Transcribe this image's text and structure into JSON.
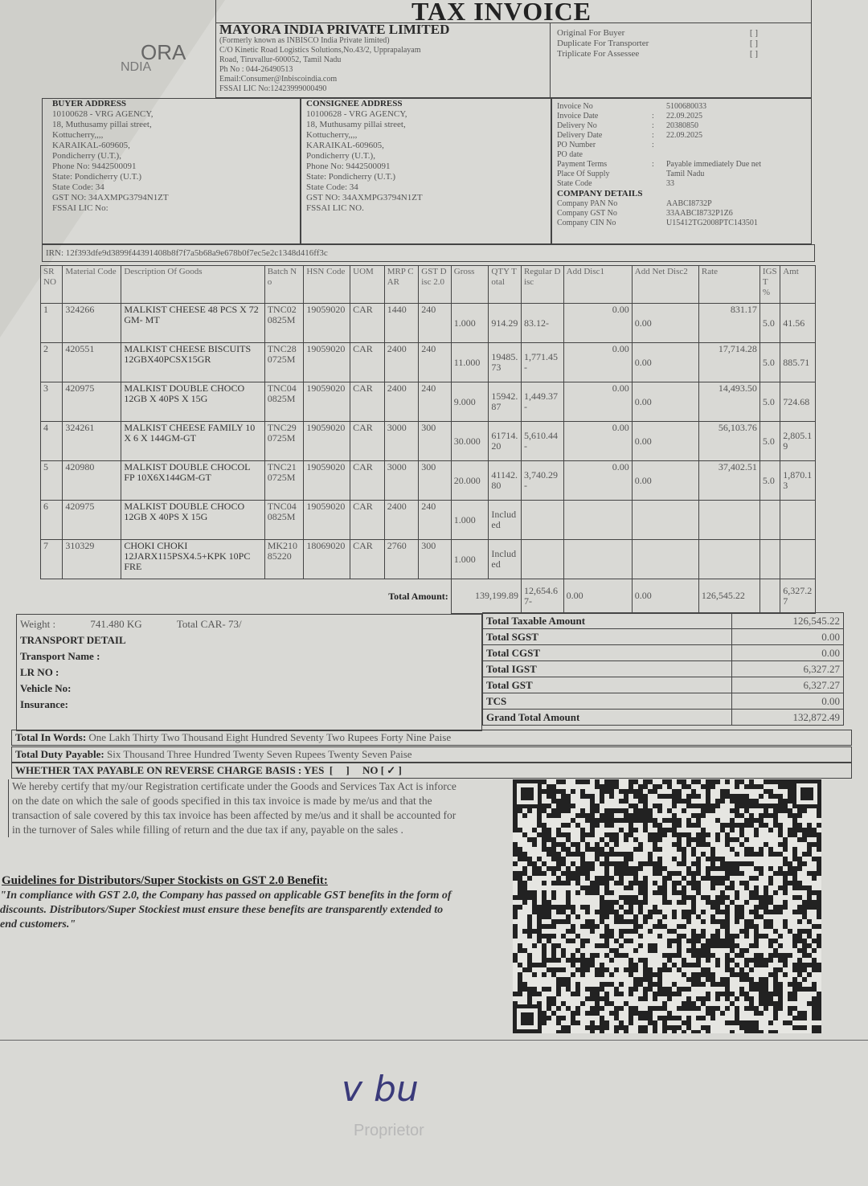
{
  "logo": {
    "text_top": "ORA",
    "text_bottom": "NDIA"
  },
  "title": "TAX INVOICE",
  "seller": {
    "name": "MAYORA INDIA PRIVATE LIMITED",
    "lines": [
      "(Formerly known as INBISCO India Private limited)",
      "C/O Kinetic Road Logistics Solutions,No.43/2, Upprapalayam",
      "Road, Tiruvallur-600052, Tamil Nadu",
      "Ph No : 044-26490513",
      "Email:Consumer@Inbiscoindia.com",
      "FSSAI LIC No:12423999000490"
    ]
  },
  "copies": [
    {
      "label": "Original For Buyer",
      "mark": "[  ]"
    },
    {
      "label": "Duplicate For Transporter",
      "mark": "[  ]"
    },
    {
      "label": "Triplicate For Assessee",
      "mark": "[  ]"
    }
  ],
  "buyer": {
    "heading": "BUYER ADDRESS",
    "lines": [
      "10100628 - VRG AGENCY,",
      "18, Muthusamy pillai street,",
      "Kottucherry,,,,",
      "KARAIKAL-609605,",
      "Pondicherry (U.T.),",
      "Phone No: 9442500091",
      "State: Pondicherry (U.T.)",
      "State Code: 34",
      "GST NO: 34AXMPG3794N1ZT",
      "FSSAI LIC No:"
    ]
  },
  "consignee": {
    "heading": "CONSIGNEE ADDRESS",
    "lines": [
      "10100628 - VRG AGENCY,",
      "18, Muthusamy pillai street,",
      "Kottucherry,,,,",
      "KARAIKAL-609605,",
      "Pondicherry (U.T.),",
      "Phone No: 9442500091",
      "State: Pondicherry (U.T.)",
      "State Code: 34",
      "GST NO: 34AXMPG3794N1ZT",
      "FSSAI LIC NO."
    ]
  },
  "invoice_info": [
    {
      "label": "Invoice No",
      "sep": "",
      "value": "5100680033"
    },
    {
      "label": "Invoice Date",
      "sep": ":",
      "value": "22.09.2025"
    },
    {
      "label": "Delivery No",
      "sep": ":",
      "value": "20380850"
    },
    {
      "label": "Delivery Date",
      "sep": ":",
      "value": "22.09.2025"
    },
    {
      "label": "PO Number",
      "sep": ":",
      "value": ""
    },
    {
      "label": "PO date",
      "sep": "",
      "value": ""
    },
    {
      "label": "Payment Terms",
      "sep": ":",
      "value": "Payable immediately Due net"
    },
    {
      "label": "Place Of Supply",
      "sep": "",
      "value": "Tamil Nadu"
    },
    {
      "label": "State Code",
      "sep": "",
      "value": "33"
    }
  ],
  "company_details": {
    "heading": "COMPANY DETAILS",
    "items": [
      {
        "label": "Company PAN No",
        "value": "AABCI8732P"
      },
      {
        "label": "Company GST No",
        "value": "33AABCI8732P1Z6"
      },
      {
        "label": "Company CIN No",
        "value": "U15412TG2008PTC143501"
      }
    ]
  },
  "irn": "IRN: 12f393dfe9d3899f44391408b8f7f7a5b68a9e678b0f7ec5e2c1348d416ff3c",
  "table": {
    "headers": [
      "SR NO",
      "Material Code",
      "Description Of Goods",
      "Batch No",
      "HSN Code",
      "UOM",
      "MRP CAR",
      "GST Disc 2.0",
      "Gross",
      "QTY Total",
      "Regular Disc",
      "Add Disc1",
      "Add Net Disc2",
      "Rate",
      "IGST %",
      "Amt"
    ],
    "rows": [
      [
        "1",
        "324266",
        "MALKIST CHEESE 48 PCS X 72 GM- MT",
        "TNC020825M",
        "19059020",
        "CAR",
        "1440",
        "240",
        "1.000",
        "914.29",
        "83.12-",
        "0.00",
        "0.00",
        "831.17",
        "5.0",
        "41.56"
      ],
      [
        "2",
        "420551",
        "MALKIST CHEESE BISCUITS 12GBX40PCSX15GR",
        "TNC280725M",
        "19059020",
        "CAR",
        "2400",
        "240",
        "11.000",
        "19485.73",
        "1,771.45-",
        "0.00",
        "0.00",
        "17,714.28",
        "5.0",
        "885.71"
      ],
      [
        "3",
        "420975",
        "MALKIST DOUBLE CHOCO 12GB X 40PS X 15G",
        "TNC040825M",
        "19059020",
        "CAR",
        "2400",
        "240",
        "9.000",
        "15942.87",
        "1,449.37-",
        "0.00",
        "0.00",
        "14,493.50",
        "5.0",
        "724.68"
      ],
      [
        "4",
        "324261",
        "MALKIST CHEESE FAMILY 10 X 6 X 144GM-GT",
        "TNC290725M",
        "19059020",
        "CAR",
        "3000",
        "300",
        "30.000",
        "61714.20",
        "5,610.44-",
        "0.00",
        "0.00",
        "56,103.76",
        "5.0",
        "2,805.19"
      ],
      [
        "5",
        "420980",
        "MALKIST DOUBLE CHOCOL FP 10X6X144GM-GT",
        "TNC210725M",
        "19059020",
        "CAR",
        "3000",
        "300",
        "20.000",
        "41142.80",
        "3,740.29-",
        "0.00",
        "0.00",
        "37,402.51",
        "5.0",
        "1,870.13"
      ],
      [
        "6",
        "420975",
        "MALKIST DOUBLE CHOCO 12GB X 40PS X 15G",
        "TNC040825M",
        "19059020",
        "CAR",
        "2400",
        "240",
        "1.000",
        "Included",
        "",
        "",
        "",
        "",
        "",
        ""
      ],
      [
        "7",
        "310329",
        "CHOKI CHOKI 12JARX115PSX4.5+KPK 10PC FRE",
        "MK21085220",
        "18069020",
        "CAR",
        "2760",
        "300",
        "1.000",
        "Included",
        "",
        "",
        "",
        "",
        "",
        ""
      ]
    ],
    "total": {
      "label": "Total Amount:",
      "gross": "139,199.89",
      "regular_disc": "12,654.67-",
      "add_disc1": "0.00",
      "add_disc2": "0.00",
      "rate": "126,545.22",
      "amt": "6,327.27"
    }
  },
  "transport": {
    "weight_label": "Weight :",
    "weight": "741.480 KG",
    "total_car": "Total CAR- 73/",
    "heading": "TRANSPORT DETAIL",
    "fields": [
      "Transport Name :",
      "LR NO :",
      "Vehicle No:",
      "Insurance:"
    ]
  },
  "summary": [
    {
      "label": "Total Taxable Amount",
      "value": "126,545.22"
    },
    {
      "label": "Total SGST",
      "value": "0.00"
    },
    {
      "label": "Total CGST",
      "value": "0.00"
    },
    {
      "label": "Total IGST",
      "value": "6,327.27"
    },
    {
      "label": "Total GST",
      "value": "6,327.27"
    },
    {
      "label": "TCS",
      "value": "0.00"
    },
    {
      "label": "Grand Total Amount",
      "value": "132,872.49"
    }
  ],
  "words": {
    "total_label": "Total In Words:",
    "total_text": "One Lakh Thirty Two Thousand Eight Hundred Seventy Two Rupees Forty Nine Paise",
    "duty_label": "Total Duty Payable:",
    "duty_text": "Six Thousand Three Hundred Twenty Seven Rupees Twenty Seven Paise",
    "reverse": "WHETHER TAX PAYABLE ON REVERSE CHARGE BASIS : YES  [     ]     NO [ ✓ ]"
  },
  "certificate": "We hereby certify that my/our Registration certificate under the Goods and Services Tax Act is inforce on the date on which the sale of goods specified in this tax invoice is made by me/us and that the transaction of sale covered by this tax invoice has been affected by me/us and it shall be accounted for in the turnover of Sales while filling of return and the due tax if any, payable on the sales .",
  "guidelines": {
    "heading": "Guidelines for Distributors/Super Stockists on GST 2.0 Benefit:",
    "text": "\"In compliance with GST 2.0, the Company has passed on applicable GST benefits in the form of discounts. Distributors/Super Stockiest must ensure these benefits are transparently extended to end customers.\""
  },
  "signature": {
    "mark": "v bu",
    "caption": "Proprietor"
  },
  "colors": {
    "paper": "#d9d9d5",
    "ink": "#444444",
    "signature_ink": "#3a3a7a"
  }
}
